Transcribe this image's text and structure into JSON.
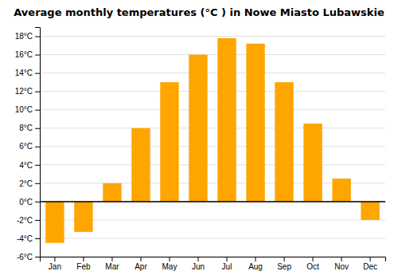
{
  "chart_data": {
    "type": "bar",
    "title": "Average monthly temperatures (°C ) in Nowe Miasto Lubawskie",
    "categories": [
      "Jan",
      "Feb",
      "Mar",
      "Apr",
      "May",
      "Jun",
      "Jul",
      "Aug",
      "Sep",
      "Oct",
      "Nov",
      "Dec"
    ],
    "values": [
      -4.5,
      -3.3,
      2.0,
      8.0,
      13.0,
      16.0,
      17.8,
      17.2,
      13.0,
      8.5,
      2.5,
      -2.0
    ],
    "color": "#FFA500",
    "ylim": [
      -6,
      19
    ],
    "yticks": [
      {
        "value": -6,
        "label": "-6°C"
      },
      {
        "value": -4,
        "label": "-4°C"
      },
      {
        "value": -2,
        "label": "-2°C"
      },
      {
        "value": 0,
        "label": "0°C"
      },
      {
        "value": 2,
        "label": "2°C"
      },
      {
        "value": 4,
        "label": "4°C"
      },
      {
        "value": 6,
        "label": "6°C"
      },
      {
        "value": 8,
        "label": "8°C"
      },
      {
        "value": 10,
        "label": "10°C"
      },
      {
        "value": 12,
        "label": "12°C"
      },
      {
        "value": 14,
        "label": "14°C"
      },
      {
        "value": 16,
        "label": "16°C"
      },
      {
        "value": 18,
        "label": "18°C"
      }
    ],
    "grid": true
  }
}
